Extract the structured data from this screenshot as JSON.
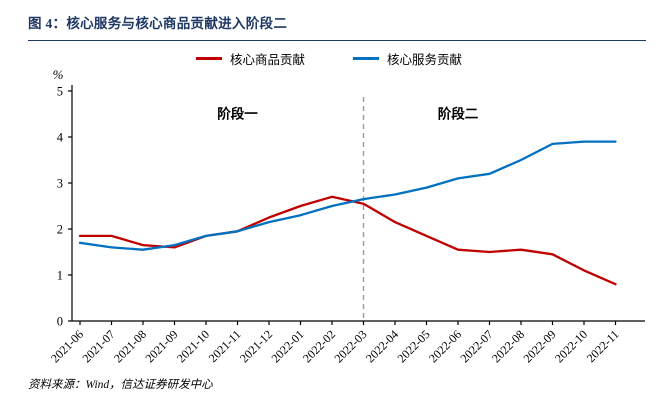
{
  "header": {
    "title": "图 4：核心服务与核心商品贡献进入阶段二"
  },
  "legend": [
    {
      "label": "核心商品贡献",
      "color": "#C00000"
    },
    {
      "label": "核心服务贡献",
      "color": "#0070C0"
    }
  ],
  "chart_data": {
    "type": "line",
    "title": "核心服务与核心商品贡献进入阶段二",
    "ylabel": "%",
    "xlabel": "",
    "ylim": [
      0,
      5
    ],
    "yticks": [
      0,
      1,
      2,
      3,
      4,
      5
    ],
    "grid": false,
    "legend_position": "top",
    "categories": [
      "2021-06",
      "2021-07",
      "2021-08",
      "2021-09",
      "2021-10",
      "2021-11",
      "2021-12",
      "2022-01",
      "2022-02",
      "2022-03",
      "2022-04",
      "2022-05",
      "2022-06",
      "2022-07",
      "2022-08",
      "2022-09",
      "2022-10",
      "2022-11"
    ],
    "series": [
      {
        "name": "核心商品贡献",
        "color": "#C00000",
        "values": [
          1.85,
          1.85,
          1.65,
          1.6,
          1.85,
          1.95,
          2.25,
          2.5,
          2.7,
          2.55,
          2.15,
          1.85,
          1.55,
          1.5,
          1.55,
          1.45,
          1.1,
          0.8
        ]
      },
      {
        "name": "核心服务贡献",
        "color": "#0070C0",
        "values": [
          1.7,
          1.6,
          1.55,
          1.65,
          1.85,
          1.95,
          2.15,
          2.3,
          2.5,
          2.65,
          2.75,
          2.9,
          3.1,
          3.2,
          3.5,
          3.85,
          3.9,
          3.9
        ]
      }
    ],
    "vline": {
      "category": "2022-03",
      "style": "dashed",
      "color": "#9b9b9b"
    },
    "annotations": [
      {
        "text": "阶段一",
        "x_category": "2021-11",
        "y": 4.4
      },
      {
        "text": "阶段二",
        "x_category": "2022-06",
        "y": 4.4
      }
    ]
  },
  "footer": {
    "source": "资料来源：Wind，信达证券研发中心"
  },
  "colors": {
    "title_navy": "#1F3864",
    "axis": "#000000",
    "vline_gray": "#9b9b9b"
  }
}
